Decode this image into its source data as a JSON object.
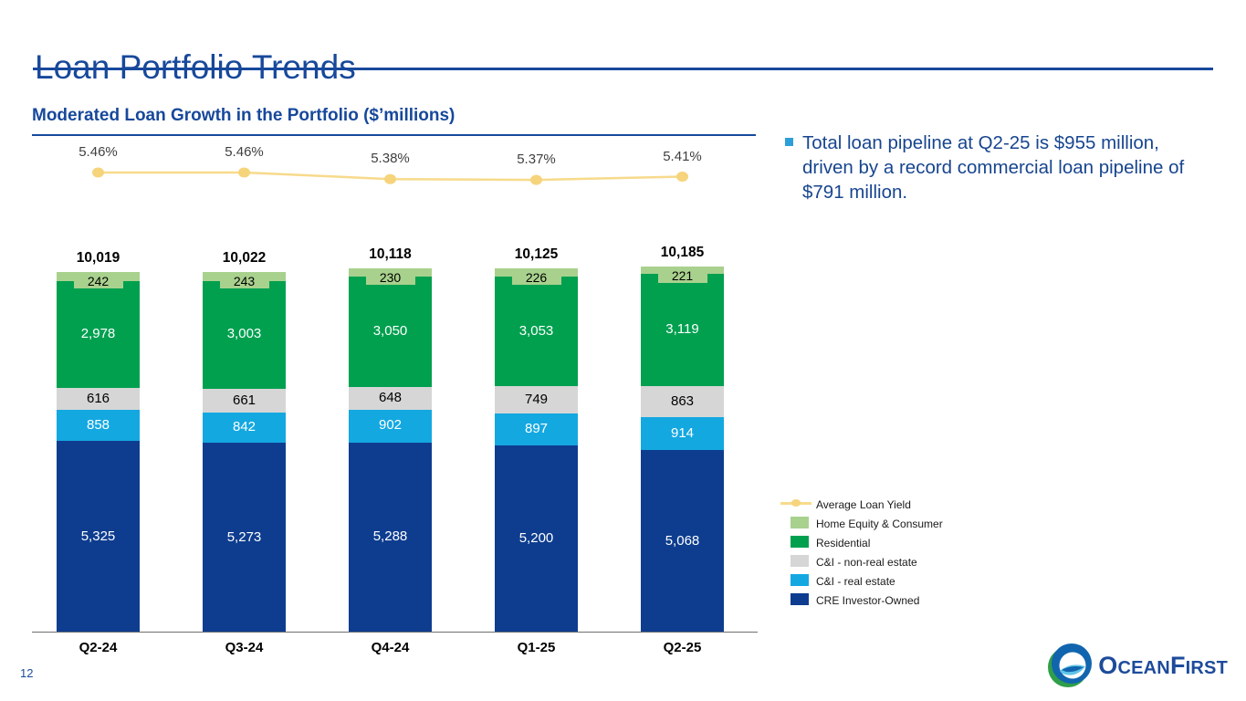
{
  "page": {
    "number": "12"
  },
  "header": {
    "title": "Loan Portfolio Trends"
  },
  "section": {
    "subtitle": "Moderated Loan Growth in the Portfolio ($’millions)"
  },
  "callout": {
    "text": "Total loan pipeline at Q2-25 is $955 million, driven by a record commercial loan pipeline of $791 million."
  },
  "colors": {
    "navy_accent": "#17489b",
    "callout_text": "#17458f",
    "callout_bullet": "#2d9fd8",
    "yield_line": "#f7da8b",
    "yield_marker": "#f6d47c"
  },
  "chart_data": {
    "type": "bar",
    "stacked": true,
    "title": "Moderated Loan Growth in the Portfolio ($’millions)",
    "categories": [
      "Q2-24",
      "Q3-24",
      "Q4-24",
      "Q1-25",
      "Q2-25"
    ],
    "totals_labels": [
      "10,019",
      "10,022",
      "10,118",
      "10,125",
      "10,185"
    ],
    "series": [
      {
        "name": "CRE Investor-Owned",
        "color": "#0e3d8f",
        "label_color": "#ffffff",
        "label_style": "inside",
        "values": [
          5325,
          5273,
          5288,
          5200,
          5068
        ]
      },
      {
        "name": "C&I - real estate",
        "color": "#14a8e1",
        "label_color": "#ffffff",
        "label_style": "inside",
        "values": [
          858,
          842,
          902,
          897,
          914
        ]
      },
      {
        "name": "C&I - non-real estate",
        "color": "#d6d6d6",
        "label_color": "#000000",
        "label_style": "inside",
        "values": [
          616,
          661,
          648,
          749,
          863
        ]
      },
      {
        "name": "Residential",
        "color": "#00a04f",
        "label_color": "#ffffff",
        "label_style": "inside",
        "values": [
          2978,
          3003,
          3050,
          3053,
          3119
        ]
      },
      {
        "name": "Home Equity & Consumer",
        "color": "#a9d18e",
        "label_color": "#000000",
        "label_style": "boxed",
        "values": [
          242,
          243,
          230,
          226,
          221
        ]
      }
    ],
    "line_series": {
      "name": "Average Loan Yield",
      "values": [
        5.46,
        5.46,
        5.38,
        5.37,
        5.41
      ],
      "labels": [
        "5.46%",
        "5.46%",
        "5.38%",
        "5.37%",
        "5.41%"
      ]
    },
    "value_axis_visible": false,
    "gridlines": false,
    "legend_position": "right-bottom"
  },
  "legend": {
    "items": [
      {
        "label": "Average Loan Yield",
        "type": "line",
        "color": "#f7da8b"
      },
      {
        "label": "Home Equity & Consumer",
        "type": "box",
        "color": "#a9d18e"
      },
      {
        "label": "Residential",
        "type": "box",
        "color": "#00a04f"
      },
      {
        "label": "C&I - non-real estate",
        "type": "box",
        "color": "#d6d6d6"
      },
      {
        "label": "C&I - real estate",
        "type": "box",
        "color": "#14a8e1"
      },
      {
        "label": "CRE Investor-Owned",
        "type": "box",
        "color": "#0e3d8f"
      }
    ]
  },
  "logo": {
    "brand": "OceanFirst",
    "part1": "O",
    "part2": "CEAN",
    "part3": "F",
    "part4": "IRST"
  }
}
